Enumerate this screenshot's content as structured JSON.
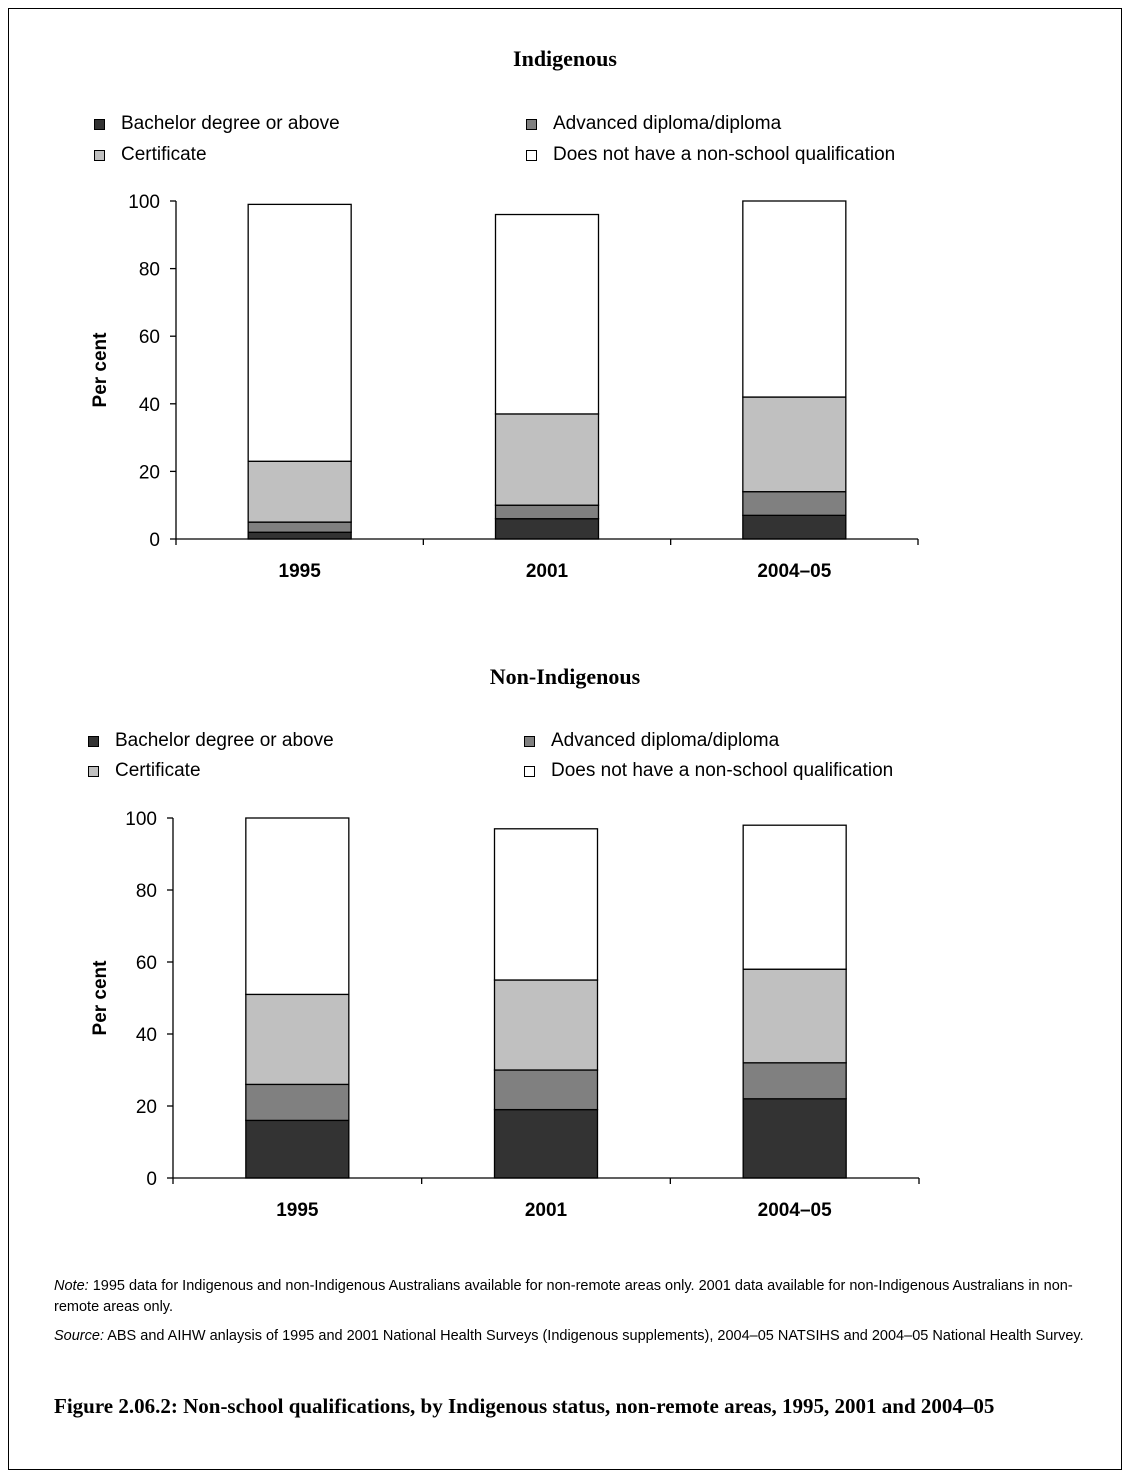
{
  "colors": {
    "bachelor": "#333333",
    "diploma": "#808080",
    "certificate": "#c0c0c0",
    "none": "#ffffff"
  },
  "chart_data": [
    {
      "type": "bar",
      "stacked": true,
      "title": "Indigenous",
      "legend": {
        "bachelor": "Bachelor degree or above",
        "diploma": "Advanced diploma/diploma",
        "certificate": "Certificate",
        "none": "Does not have a non-school qualification"
      },
      "categories": [
        "1995",
        "2001",
        "2004–05"
      ],
      "series": [
        {
          "name": "Bachelor degree or above",
          "key": "bachelor",
          "values": [
            2,
            6,
            7
          ]
        },
        {
          "name": "Advanced diploma/diploma",
          "key": "diploma",
          "values": [
            3,
            4,
            7
          ]
        },
        {
          "name": "Certificate",
          "key": "certificate",
          "values": [
            18,
            27,
            28
          ]
        },
        {
          "name": "Does not have a non-school qualification",
          "key": "none",
          "values": [
            76,
            59,
            58
          ]
        }
      ],
      "ylabel": "Per cent",
      "ylim": [
        0,
        100
      ],
      "yticks": [
        0,
        20,
        40,
        60,
        80,
        100
      ],
      "grid": false,
      "legend_placement": "top"
    },
    {
      "type": "bar",
      "stacked": true,
      "title": "Non-Indigenous",
      "legend": {
        "bachelor": "Bachelor degree or above",
        "diploma": "Advanced diploma/diploma",
        "certificate": "Certificate",
        "none": "Does not have a non-school qualification"
      },
      "categories": [
        "1995",
        "2001",
        "2004–05"
      ],
      "series": [
        {
          "name": "Bachelor degree or above",
          "key": "bachelor",
          "values": [
            16,
            19,
            22
          ]
        },
        {
          "name": "Advanced diploma/diploma",
          "key": "diploma",
          "values": [
            10,
            11,
            10
          ]
        },
        {
          "name": "Certificate",
          "key": "certificate",
          "values": [
            25,
            25,
            26
          ]
        },
        {
          "name": "Does not have a non-school qualification",
          "key": "none",
          "values": [
            49,
            42,
            40
          ]
        }
      ],
      "ylabel": "Per cent",
      "ylim": [
        0,
        100
      ],
      "yticks": [
        0,
        20,
        40,
        60,
        80,
        100
      ],
      "grid": false,
      "legend_placement": "top"
    }
  ],
  "note": {
    "label": "Note:",
    "text": " 1995 data for Indigenous and non-Indigenous Australians available for non-remote areas only. 2001 data available for non-Indigenous Australians in non-remote areas only."
  },
  "source": {
    "label": "Source:",
    "text": " ABS and AIHW anlaysis of 1995 and 2001 National Health Surveys (Indigenous supplements), 2004–05 NATSIHS and 2004–05 National Health Survey."
  },
  "caption": "Figure 2.06.2: Non-school qualifications, by Indigenous status, non-remote areas, 1995, 2001 and 2004–05"
}
